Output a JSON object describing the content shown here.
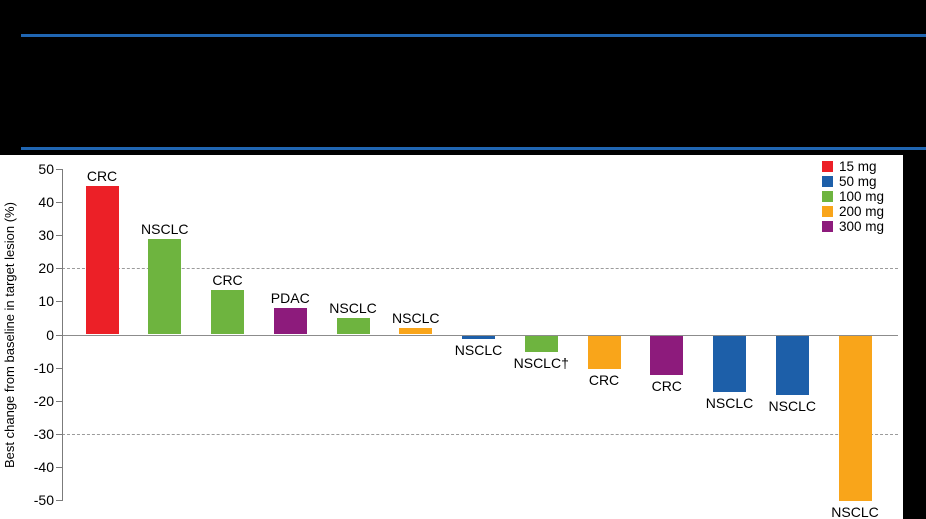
{
  "figure": {
    "background": "#000000",
    "rule_color": "#2066B2"
  },
  "chart_data": {
    "type": "bar",
    "title": "",
    "xlabel": "",
    "ylabel": "Best change from baseline in target lesion (%)",
    "ylim": [
      -50,
      50
    ],
    "yticks": [
      50,
      40,
      30,
      20,
      10,
      0,
      -10,
      -20,
      -30,
      -40,
      -50
    ],
    "dashed_reference_lines": [
      20,
      -30
    ],
    "grid": "dashed reference lines at +20 and -30 only",
    "legend": {
      "position": "top-right",
      "items": [
        {
          "label": "15 mg",
          "color": "#EC2027"
        },
        {
          "label": "50 mg",
          "color": "#1D5FA9"
        },
        {
          "label": "100 mg",
          "color": "#6EB43F"
        },
        {
          "label": "200 mg",
          "color": "#F9A51A"
        },
        {
          "label": "300 mg",
          "color": "#8D1B7C"
        }
      ]
    },
    "bars": [
      {
        "label": "CRC",
        "dose": "15 mg",
        "value": 45
      },
      {
        "label": "NSCLC",
        "dose": "100 mg",
        "value": 29
      },
      {
        "label": "CRC",
        "dose": "100 mg",
        "value": 13.5
      },
      {
        "label": "PDAC",
        "dose": "300 mg",
        "value": 8
      },
      {
        "label": "NSCLC",
        "dose": "100 mg",
        "value": 5
      },
      {
        "label": "NSCLC",
        "dose": "200 mg",
        "value": 2
      },
      {
        "label": "NSCLC",
        "dose": "50 mg",
        "value": -1
      },
      {
        "label": "NSCLC†",
        "dose": "100 mg",
        "value": -5
      },
      {
        "label": "CRC",
        "dose": "200 mg",
        "value": -10
      },
      {
        "label": "CRC",
        "dose": "300 mg",
        "value": -12
      },
      {
        "label": "NSCLC",
        "dose": "50 mg",
        "value": -17
      },
      {
        "label": "NSCLC",
        "dose": "50 mg",
        "value": -18
      },
      {
        "label": "NSCLC",
        "dose": "200 mg",
        "value": -50
      }
    ]
  }
}
